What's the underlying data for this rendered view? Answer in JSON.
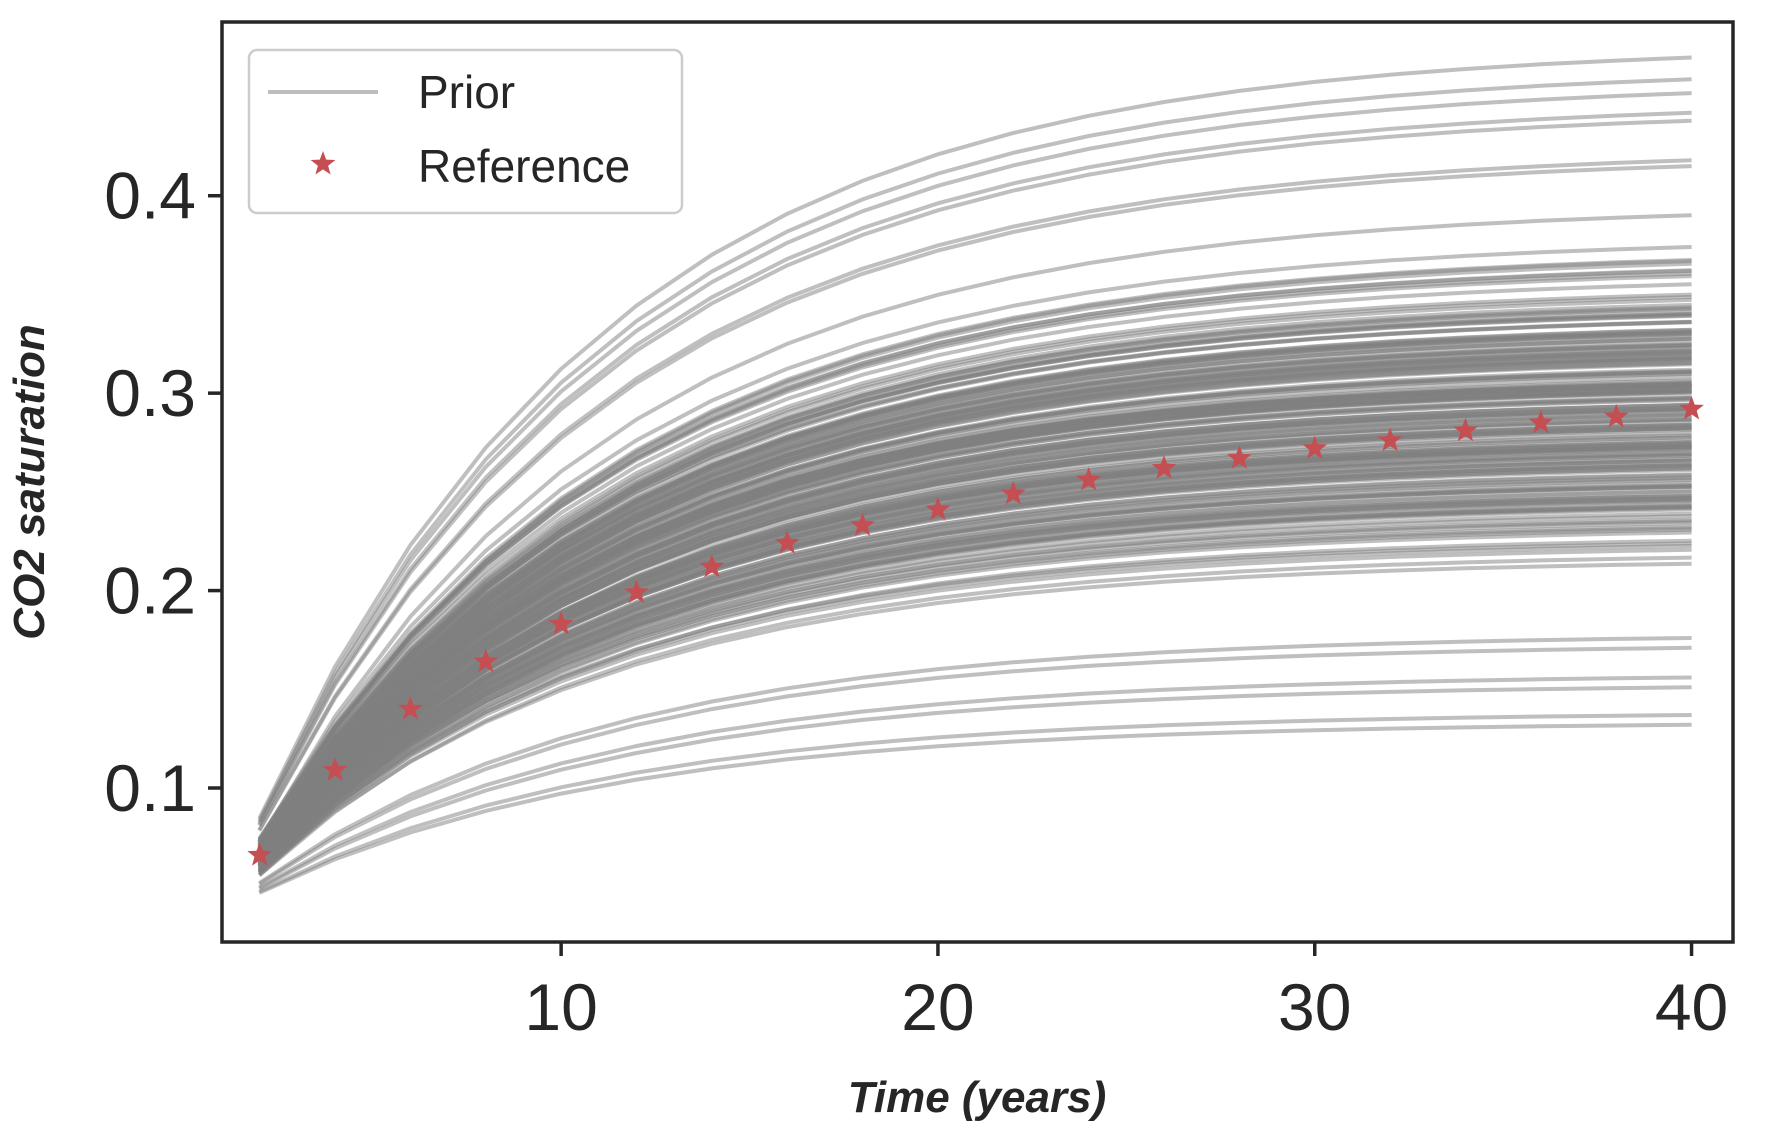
{
  "chart_data": {
    "type": "line",
    "xlabel": "Time (years)",
    "ylabel": "CO2 saturation",
    "xlim": [
      1,
      41.1
    ],
    "ylim": [
      0.022,
      0.488
    ],
    "xticks": [
      10,
      20,
      30,
      40
    ],
    "xtick_labels": [
      "10",
      "20",
      "30",
      "40"
    ],
    "yticks": [
      0.1,
      0.2,
      0.3,
      0.4
    ],
    "ytick_labels": [
      "0.1",
      "0.2",
      "0.3",
      "0.4"
    ],
    "grid": false,
    "legend": {
      "placement": "top-left",
      "entries": [
        "Prior",
        "Reference"
      ]
    },
    "time_steps": [
      2,
      4,
      6,
      8,
      10,
      12,
      14,
      16,
      18,
      20,
      22,
      24,
      26,
      28,
      30,
      32,
      34,
      36,
      38,
      40
    ],
    "series": [
      {
        "name": "Prior",
        "style": "lines",
        "color": "#808080",
        "ensemble_size": 200,
        "start_range": [
          0.047,
          0.085
        ],
        "final_values_envelope": [
          0.132,
          0.47
        ],
        "highlighted_final_values": [
          0.132,
          0.137,
          0.151,
          0.156,
          0.171,
          0.176,
          0.415,
          0.418,
          0.438,
          0.442,
          0.452,
          0.459,
          0.47
        ]
      },
      {
        "name": "Reference",
        "style": "markers",
        "marker": "star",
        "color": "#c44e52",
        "x": [
          2,
          4,
          6,
          8,
          10,
          12,
          14,
          16,
          18,
          20,
          22,
          24,
          26,
          28,
          30,
          32,
          34,
          36,
          38,
          40
        ],
        "values": [
          0.066,
          0.109,
          0.14,
          0.164,
          0.183,
          0.199,
          0.212,
          0.224,
          0.233,
          0.241,
          0.249,
          0.256,
          0.262,
          0.267,
          0.272,
          0.276,
          0.281,
          0.285,
          0.288,
          0.292
        ]
      }
    ]
  }
}
